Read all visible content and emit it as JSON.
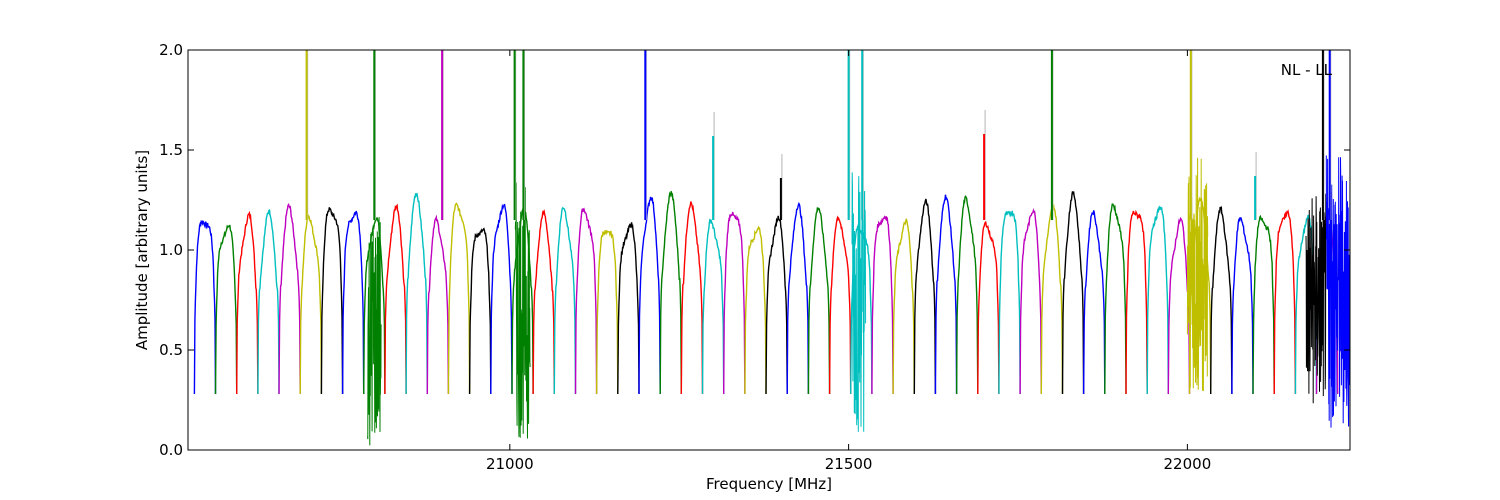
{
  "chart_data": {
    "type": "line",
    "title": "",
    "annotation": "NL - LL",
    "xlabel": "Frequency [MHz]",
    "ylabel": "Amplitude [arbitrary units]",
    "xlim": [
      20525,
      22240
    ],
    "ylim": [
      0.0,
      2.0
    ],
    "grid": false,
    "legend": "none",
    "x_ticks": [
      {
        "value": 21000,
        "label": "21000"
      },
      {
        "value": 21500,
        "label": "21500"
      },
      {
        "value": 22000,
        "label": "22000"
      }
    ],
    "y_ticks": [
      {
        "value": 0.0,
        "label": "0.0"
      },
      {
        "value": 0.5,
        "label": "0.5"
      },
      {
        "value": 1.0,
        "label": "1.0"
      },
      {
        "value": 1.5,
        "label": "1.5"
      },
      {
        "value": 2.0,
        "label": "2.0"
      }
    ],
    "colors": [
      "#0000ff",
      "#008000",
      "#ff0000",
      "#00bfbf",
      "#bf00bf",
      "#bfbf00",
      "#000000"
    ],
    "overlay_color": "#c0c0c0",
    "band_width_mhz": 31.25,
    "band_first_center_mhz": 20550,
    "band_count": 54,
    "band_shape": {
      "edge_min": 0.28,
      "plateau": 1.18
    },
    "spikes": [
      {
        "x": 20700,
        "y": 2.0,
        "color": "#bfbf00"
      },
      {
        "x": 20800,
        "y": 2.0,
        "color": "#008000"
      },
      {
        "x": 20900,
        "y": 2.0,
        "color": "#bf00bf"
      },
      {
        "x": 21007,
        "y": 2.0,
        "color": "#008000"
      },
      {
        "x": 21020,
        "y": 2.0,
        "color": "#008000"
      },
      {
        "x": 21200,
        "y": 2.0,
        "color": "#0000ff"
      },
      {
        "x": 21300,
        "y": 1.57,
        "color": "#00bfbf"
      },
      {
        "x": 21400,
        "y": 1.36,
        "color": "#000000"
      },
      {
        "x": 21500,
        "y": 2.0,
        "color": "#00bfbf"
      },
      {
        "x": 21520,
        "y": 2.0,
        "color": "#00bfbf"
      },
      {
        "x": 21700,
        "y": 1.58,
        "color": "#ff0000"
      },
      {
        "x": 21800,
        "y": 2.0,
        "color": "#008000"
      },
      {
        "x": 22005,
        "y": 2.0,
        "color": "#bfbf00"
      },
      {
        "x": 22100,
        "y": 1.37,
        "color": "#00bfbf"
      },
      {
        "x": 22200,
        "y": 2.0,
        "color": "#000000"
      },
      {
        "x": 22210,
        "y": 2.0,
        "color": "#0000ff"
      }
    ],
    "noisy_regions": [
      {
        "x_start": 20790,
        "x_end": 20810,
        "y_min": 0.0,
        "y_max": 1.2,
        "color": "#008000"
      },
      {
        "x_start": 21008,
        "x_end": 21030,
        "y_min": 0.05,
        "y_max": 1.35,
        "color": "#008000"
      },
      {
        "x_start": 21505,
        "x_end": 21525,
        "y_min": 0.08,
        "y_max": 1.45,
        "color": "#00bfbf"
      },
      {
        "x_start": 22000,
        "x_end": 22030,
        "y_min": 0.25,
        "y_max": 1.5,
        "color": "#bfbf00"
      },
      {
        "x_start": 22175,
        "x_end": 22205,
        "y_min": 0.2,
        "y_max": 1.3,
        "color": "#000000"
      },
      {
        "x_start": 22205,
        "x_end": 22240,
        "y_min": 0.1,
        "y_max": 1.5,
        "color": "#0000ff"
      }
    ]
  }
}
